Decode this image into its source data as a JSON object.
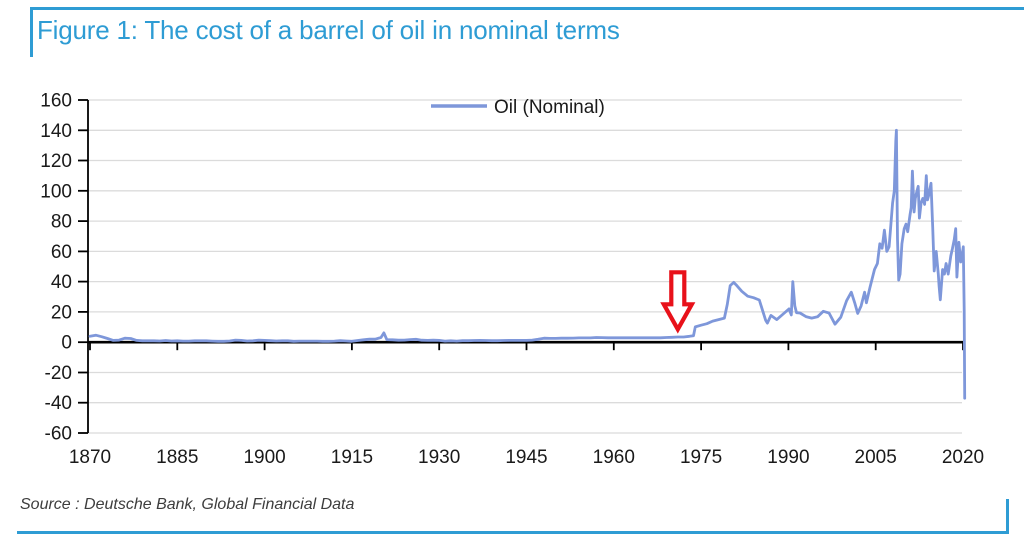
{
  "page": {
    "title": "Figure 1: The cost of a barrel of oil in nominal terms",
    "source": "Source : Deutsche Bank, Global Financial Data",
    "accent_color": "#2E9CD4"
  },
  "chart_data": {
    "type": "line",
    "title": "Figure 1: The cost of a barrel of oil in nominal terms",
    "legend": [
      "Oil (Nominal)"
    ],
    "legend_position": "top-center",
    "xlabel": "",
    "ylabel": "",
    "xlim": [
      1870,
      2020
    ],
    "ylim": [
      -60,
      160
    ],
    "x_ticks": [
      1870,
      1885,
      1900,
      1915,
      1930,
      1945,
      1960,
      1975,
      1990,
      2005,
      2020
    ],
    "y_ticks": [
      -60,
      -40,
      -20,
      0,
      20,
      40,
      60,
      80,
      100,
      120,
      140,
      160
    ],
    "grid": true,
    "gridline_color": "#DBDBDB",
    "axis_color": "#000000",
    "annotation": {
      "shape": "arrow-down",
      "color": "#E8111A",
      "year": 1971,
      "value": 8.5,
      "meaning": "points to the 1973-74 oil shock jump"
    },
    "series": [
      {
        "name": "Oil (Nominal)",
        "color": "#7E97DA",
        "points": [
          [
            1870,
            3.9
          ],
          [
            1871,
            4.6
          ],
          [
            1872,
            3.6
          ],
          [
            1873,
            2.4
          ],
          [
            1874,
            1.2
          ],
          [
            1875,
            1.4
          ],
          [
            1876,
            2.6
          ],
          [
            1877,
            2.4
          ],
          [
            1878,
            1.2
          ],
          [
            1879,
            0.9
          ],
          [
            1880,
            0.9
          ],
          [
            1881,
            0.9
          ],
          [
            1882,
            0.8
          ],
          [
            1883,
            1.1
          ],
          [
            1884,
            0.8
          ],
          [
            1885,
            0.9
          ],
          [
            1886,
            0.7
          ],
          [
            1887,
            0.7
          ],
          [
            1888,
            0.9
          ],
          [
            1889,
            0.9
          ],
          [
            1890,
            0.9
          ],
          [
            1891,
            0.7
          ],
          [
            1892,
            0.6
          ],
          [
            1893,
            0.6
          ],
          [
            1894,
            0.8
          ],
          [
            1895,
            1.4
          ],
          [
            1896,
            1.2
          ],
          [
            1897,
            0.8
          ],
          [
            1898,
            0.9
          ],
          [
            1899,
            1.3
          ],
          [
            1900,
            1.2
          ],
          [
            1901,
            1.0
          ],
          [
            1902,
            0.8
          ],
          [
            1903,
            0.9
          ],
          [
            1904,
            0.9
          ],
          [
            1905,
            0.6
          ],
          [
            1906,
            0.7
          ],
          [
            1907,
            0.7
          ],
          [
            1908,
            0.7
          ],
          [
            1909,
            0.7
          ],
          [
            1910,
            0.6
          ],
          [
            1911,
            0.6
          ],
          [
            1912,
            0.7
          ],
          [
            1913,
            1.0
          ],
          [
            1914,
            0.8
          ],
          [
            1915,
            0.6
          ],
          [
            1916,
            1.1
          ],
          [
            1917,
            1.6
          ],
          [
            1918,
            2.0
          ],
          [
            1919,
            2.0
          ],
          [
            1920,
            3.1
          ],
          [
            1920.5,
            6.1
          ],
          [
            1921,
            1.7
          ],
          [
            1922,
            1.6
          ],
          [
            1923,
            1.3
          ],
          [
            1924,
            1.4
          ],
          [
            1925,
            1.7
          ],
          [
            1926,
            1.9
          ],
          [
            1927,
            1.3
          ],
          [
            1928,
            1.2
          ],
          [
            1929,
            1.3
          ],
          [
            1930,
            1.2
          ],
          [
            1931,
            0.7
          ],
          [
            1932,
            0.9
          ],
          [
            1933,
            0.7
          ],
          [
            1934,
            1.0
          ],
          [
            1935,
            1.0
          ],
          [
            1936,
            1.1
          ],
          [
            1937,
            1.2
          ],
          [
            1938,
            1.1
          ],
          [
            1939,
            1.0
          ],
          [
            1940,
            1.0
          ],
          [
            1941,
            1.1
          ],
          [
            1942,
            1.2
          ],
          [
            1943,
            1.2
          ],
          [
            1944,
            1.2
          ],
          [
            1945,
            1.2
          ],
          [
            1946,
            1.4
          ],
          [
            1947,
            1.9
          ],
          [
            1948,
            2.6
          ],
          [
            1949,
            2.5
          ],
          [
            1950,
            2.5
          ],
          [
            1951,
            2.6
          ],
          [
            1952,
            2.6
          ],
          [
            1953,
            2.7
          ],
          [
            1954,
            2.8
          ],
          [
            1955,
            2.8
          ],
          [
            1956,
            2.8
          ],
          [
            1957,
            3.1
          ],
          [
            1958,
            3.0
          ],
          [
            1959,
            2.9
          ],
          [
            1960,
            2.9
          ],
          [
            1961,
            2.9
          ],
          [
            1962,
            2.9
          ],
          [
            1963,
            2.9
          ],
          [
            1964,
            2.9
          ],
          [
            1965,
            2.9
          ],
          [
            1966,
            2.9
          ],
          [
            1967,
            2.9
          ],
          [
            1968,
            2.9
          ],
          [
            1969,
            3.1
          ],
          [
            1970,
            3.2
          ],
          [
            1971,
            3.4
          ],
          [
            1972,
            3.4
          ],
          [
            1973,
            3.9
          ],
          [
            1973.7,
            4.3
          ],
          [
            1974,
            10.1
          ],
          [
            1975,
            11.2
          ],
          [
            1976,
            12.2
          ],
          [
            1977,
            13.9
          ],
          [
            1978,
            14.9
          ],
          [
            1979,
            15.9
          ],
          [
            1979.5,
            25.0
          ],
          [
            1980,
            37.4
          ],
          [
            1980.6,
            39.5
          ],
          [
            1981,
            38.0
          ],
          [
            1982,
            33.6
          ],
          [
            1983,
            30.4
          ],
          [
            1984,
            29.4
          ],
          [
            1985,
            27.9
          ],
          [
            1986.1,
            14.4
          ],
          [
            1986.4,
            12.6
          ],
          [
            1987,
            17.7
          ],
          [
            1988,
            14.9
          ],
          [
            1989,
            18.3
          ],
          [
            1990.1,
            22.0
          ],
          [
            1990.5,
            18.0
          ],
          [
            1990.75,
            40.0
          ],
          [
            1991.1,
            24.0
          ],
          [
            1991.4,
            19.5
          ],
          [
            1992,
            19.3
          ],
          [
            1993,
            16.9
          ],
          [
            1994,
            15.9
          ],
          [
            1995,
            16.8
          ],
          [
            1996,
            20.4
          ],
          [
            1997,
            19.2
          ],
          [
            1998,
            11.9
          ],
          [
            1999,
            16.5
          ],
          [
            2000,
            27.4
          ],
          [
            2000.8,
            33.0
          ],
          [
            2001.4,
            26.0
          ],
          [
            2001.9,
            19.0
          ],
          [
            2002.5,
            24.0
          ],
          [
            2003.1,
            33.0
          ],
          [
            2003.4,
            26.0
          ],
          [
            2004,
            36.0
          ],
          [
            2004.8,
            48.0
          ],
          [
            2005.3,
            52.0
          ],
          [
            2005.7,
            65.0
          ],
          [
            2006.1,
            62.0
          ],
          [
            2006.5,
            74.0
          ],
          [
            2006.9,
            60.0
          ],
          [
            2007.3,
            63.0
          ],
          [
            2007.9,
            92.0
          ],
          [
            2008.2,
            100.0
          ],
          [
            2008.45,
            133.0
          ],
          [
            2008.55,
            140.0
          ],
          [
            2008.75,
            68.0
          ],
          [
            2008.95,
            41.0
          ],
          [
            2009.2,
            45.0
          ],
          [
            2009.5,
            65.0
          ],
          [
            2009.9,
            75.0
          ],
          [
            2010.2,
            78.0
          ],
          [
            2010.5,
            73.0
          ],
          [
            2010.9,
            84.0
          ],
          [
            2011.1,
            89.0
          ],
          [
            2011.3,
            113.0
          ],
          [
            2011.6,
            86.0
          ],
          [
            2011.8,
            95.0
          ],
          [
            2012.1,
            100.0
          ],
          [
            2012.3,
            103.0
          ],
          [
            2012.5,
            82.0
          ],
          [
            2012.8,
            92.0
          ],
          [
            2013.1,
            95.0
          ],
          [
            2013.4,
            91.0
          ],
          [
            2013.7,
            110.0
          ],
          [
            2013.9,
            94.0
          ],
          [
            2014.1,
            97.0
          ],
          [
            2014.5,
            105.0
          ],
          [
            2014.8,
            76.0
          ],
          [
            2015.05,
            47.0
          ],
          [
            2015.4,
            60.0
          ],
          [
            2015.75,
            45.0
          ],
          [
            2015.9,
            37.0
          ],
          [
            2016.1,
            28.0
          ],
          [
            2016.5,
            48.0
          ],
          [
            2016.8,
            45.0
          ],
          [
            2017.1,
            52.0
          ],
          [
            2017.45,
            45.0
          ],
          [
            2017.9,
            57.0
          ],
          [
            2018.2,
            62.0
          ],
          [
            2018.5,
            68.0
          ],
          [
            2018.75,
            75.0
          ],
          [
            2018.95,
            43.0
          ],
          [
            2019.3,
            66.0
          ],
          [
            2019.6,
            53.0
          ],
          [
            2019.85,
            57.0
          ],
          [
            2020.05,
            63.0
          ],
          [
            2020.2,
            21.0
          ],
          [
            2020.3,
            -37.0
          ]
        ]
      }
    ]
  }
}
